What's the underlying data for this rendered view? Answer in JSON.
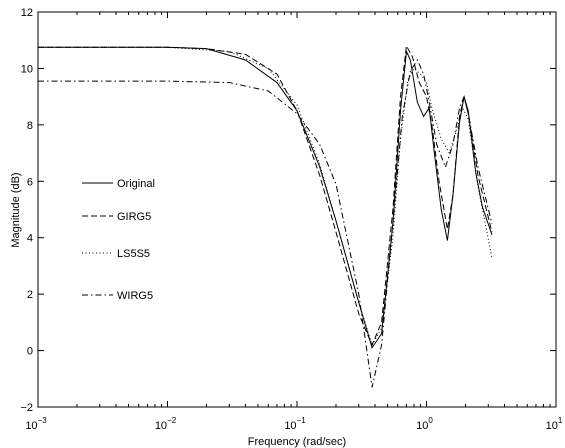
{
  "chart_data": {
    "type": "line",
    "title": "",
    "xlabel": "Frequency (rad/sec)",
    "ylabel": "Magnitude (dB)",
    "xscale": "log",
    "xlim": [
      0.001,
      10
    ],
    "ylim": [
      -2,
      12
    ],
    "grid": false,
    "legend_position": "left",
    "x_ticks": [
      {
        "base": "10",
        "exp": "−3"
      },
      {
        "base": "10",
        "exp": "−2"
      },
      {
        "base": "10",
        "exp": "−1"
      },
      {
        "base": "10",
        "exp": "0"
      },
      {
        "base": "10",
        "exp": "1"
      }
    ],
    "y_ticks": [
      "−2",
      "0",
      "2",
      "4",
      "6",
      "8",
      "10",
      "12"
    ],
    "series": [
      {
        "name": "Original",
        "style": "solid",
        "points": [
          [
            0.001,
            10.75
          ],
          [
            0.01,
            10.75
          ],
          [
            0.02,
            10.7
          ],
          [
            0.04,
            10.3
          ],
          [
            0.07,
            9.5
          ],
          [
            0.1,
            8.5
          ],
          [
            0.15,
            6.5
          ],
          [
            0.2,
            4.6
          ],
          [
            0.3,
            1.7
          ],
          [
            0.38,
            0.1
          ],
          [
            0.45,
            0.6
          ],
          [
            0.55,
            4.5
          ],
          [
            0.63,
            8.5
          ],
          [
            0.7,
            10.6
          ],
          [
            0.75,
            10.3
          ],
          [
            0.85,
            8.8
          ],
          [
            0.95,
            8.3
          ],
          [
            1.05,
            8.6
          ],
          [
            1.15,
            7.0
          ],
          [
            1.3,
            5.0
          ],
          [
            1.45,
            3.9
          ],
          [
            1.6,
            5.5
          ],
          [
            1.8,
            8.1
          ],
          [
            1.95,
            9.0
          ],
          [
            2.1,
            8.5
          ],
          [
            2.4,
            6.3
          ],
          [
            2.7,
            5.1
          ],
          [
            3.2,
            4.1
          ]
        ]
      },
      {
        "name": "GIRG5",
        "style": "dashed",
        "points": [
          [
            0.001,
            10.75
          ],
          [
            0.01,
            10.75
          ],
          [
            0.02,
            10.7
          ],
          [
            0.04,
            10.5
          ],
          [
            0.07,
            9.8
          ],
          [
            0.1,
            8.5
          ],
          [
            0.15,
            6.2
          ],
          [
            0.2,
            4.2
          ],
          [
            0.3,
            1.3
          ],
          [
            0.38,
            0.2
          ],
          [
            0.45,
            1.0
          ],
          [
            0.55,
            5.0
          ],
          [
            0.63,
            9.0
          ],
          [
            0.7,
            10.8
          ],
          [
            0.78,
            10.4
          ],
          [
            0.88,
            9.5
          ],
          [
            1.0,
            9.0
          ],
          [
            1.1,
            8.0
          ],
          [
            1.25,
            6.0
          ],
          [
            1.45,
            4.3
          ],
          [
            1.6,
            5.5
          ],
          [
            1.8,
            8.3
          ],
          [
            1.95,
            9.0
          ],
          [
            2.1,
            8.4
          ],
          [
            2.5,
            6.2
          ],
          [
            3.2,
            4.2
          ]
        ]
      },
      {
        "name": "LS5S5",
        "style": "dotted",
        "points": [
          [
            0.001,
            10.75
          ],
          [
            0.01,
            10.75
          ],
          [
            0.03,
            10.6
          ],
          [
            0.06,
            10.0
          ],
          [
            0.1,
            8.7
          ],
          [
            0.15,
            6.6
          ],
          [
            0.2,
            4.6
          ],
          [
            0.3,
            1.7
          ],
          [
            0.38,
            0.2
          ],
          [
            0.45,
            0.8
          ],
          [
            0.55,
            4.0
          ],
          [
            0.63,
            7.5
          ],
          [
            0.72,
            9.6
          ],
          [
            0.8,
            10.0
          ],
          [
            0.9,
            9.8
          ],
          [
            1.0,
            9.5
          ],
          [
            1.1,
            8.6
          ],
          [
            1.3,
            7.5
          ],
          [
            1.5,
            7.0
          ],
          [
            1.7,
            7.8
          ],
          [
            1.9,
            8.6
          ],
          [
            2.1,
            8.2
          ],
          [
            2.5,
            5.8
          ],
          [
            3.2,
            3.3
          ]
        ]
      },
      {
        "name": "WIRG5",
        "style": "dashdot",
        "points": [
          [
            0.001,
            9.55
          ],
          [
            0.01,
            9.55
          ],
          [
            0.03,
            9.5
          ],
          [
            0.06,
            9.2
          ],
          [
            0.1,
            8.4
          ],
          [
            0.15,
            7.3
          ],
          [
            0.2,
            5.9
          ],
          [
            0.3,
            2.0
          ],
          [
            0.38,
            -1.3
          ],
          [
            0.45,
            0.2
          ],
          [
            0.55,
            4.5
          ],
          [
            0.65,
            8.3
          ],
          [
            0.75,
            9.9
          ],
          [
            0.85,
            10.3
          ],
          [
            0.95,
            9.8
          ],
          [
            1.05,
            8.8
          ],
          [
            1.2,
            7.3
          ],
          [
            1.4,
            6.5
          ],
          [
            1.6,
            7.3
          ],
          [
            1.8,
            8.6
          ],
          [
            1.95,
            9.0
          ],
          [
            2.1,
            8.4
          ],
          [
            2.5,
            6.5
          ],
          [
            3.2,
            4.5
          ]
        ]
      }
    ]
  }
}
